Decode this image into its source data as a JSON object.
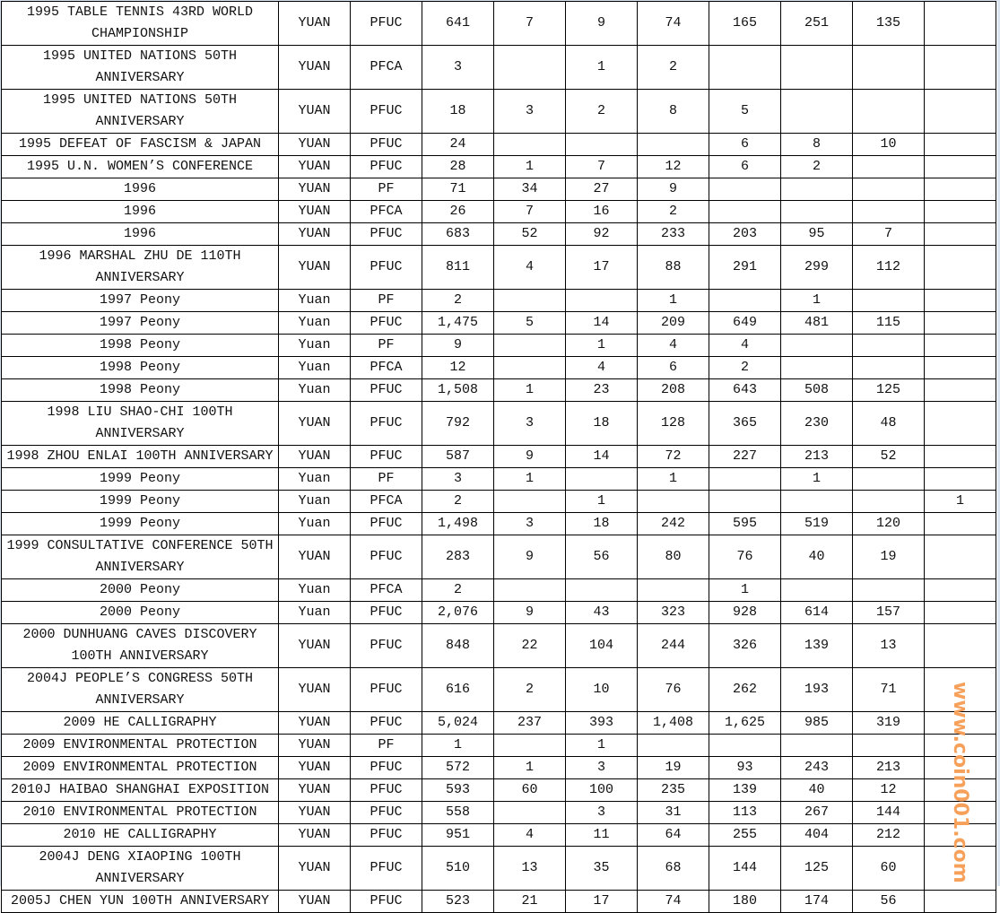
{
  "table": {
    "rows": [
      [
        "1995 TABLE TENNIS 43RD WORLD CHAMPIONSHIP",
        "YUAN",
        "PFUC",
        "641",
        "7",
        "9",
        "74",
        "165",
        "251",
        "135",
        ""
      ],
      [
        "1995 UNITED NATIONS 50TH ANNIVERSARY",
        "YUAN",
        "PFCA",
        "3",
        "",
        "1",
        "2",
        "",
        "",
        "",
        ""
      ],
      [
        "1995 UNITED NATIONS 50TH ANNIVERSARY",
        "YUAN",
        "PFUC",
        "18",
        "3",
        "2",
        "8",
        "5",
        "",
        "",
        ""
      ],
      [
        "1995 DEFEAT OF FASCISM & JAPAN",
        "YUAN",
        "PFUC",
        "24",
        "",
        "",
        "",
        "6",
        "8",
        "10",
        ""
      ],
      [
        "1995 U.N. WOMEN’S CONFERENCE",
        "YUAN",
        "PFUC",
        "28",
        "1",
        "7",
        "12",
        "6",
        "2",
        "",
        ""
      ],
      [
        "1996",
        "YUAN",
        "PF",
        "71",
        "34",
        "27",
        "9",
        "",
        "",
        "",
        ""
      ],
      [
        "1996",
        "YUAN",
        "PFCA",
        "26",
        "7",
        "16",
        "2",
        "",
        "",
        "",
        ""
      ],
      [
        "1996",
        "YUAN",
        "PFUC",
        "683",
        "52",
        "92",
        "233",
        "203",
        "95",
        "7",
        ""
      ],
      [
        "1996 MARSHAL ZHU DE 110TH ANNIVERSARY",
        "YUAN",
        "PFUC",
        "811",
        "4",
        "17",
        "88",
        "291",
        "299",
        "112",
        ""
      ],
      [
        "1997 Peony",
        "Yuan",
        "PF",
        "2",
        "",
        "",
        "1",
        "",
        "1",
        "",
        ""
      ],
      [
        "1997 Peony",
        "Yuan",
        "PFUC",
        "1,475",
        "5",
        "14",
        "209",
        "649",
        "481",
        "115",
        ""
      ],
      [
        "1998 Peony",
        "Yuan",
        "PF",
        "9",
        "",
        "1",
        "4",
        "4",
        "",
        "",
        ""
      ],
      [
        "1998 Peony",
        "Yuan",
        "PFCA",
        "12",
        "",
        "4",
        "6",
        "2",
        "",
        "",
        ""
      ],
      [
        "1998 Peony",
        "Yuan",
        "PFUC",
        "1,508",
        "1",
        "23",
        "208",
        "643",
        "508",
        "125",
        ""
      ],
      [
        "1998 LIU SHAO-CHI 100TH ANNIVERSARY",
        "YUAN",
        "PFUC",
        "792",
        "3",
        "18",
        "128",
        "365",
        "230",
        "48",
        ""
      ],
      [
        "1998 ZHOU ENLAI 100TH ANNIVERSARY",
        "YUAN",
        "PFUC",
        "587",
        "9",
        "14",
        "72",
        "227",
        "213",
        "52",
        ""
      ],
      [
        "1999 Peony",
        "Yuan",
        "PF",
        "3",
        "1",
        "",
        "1",
        "",
        "1",
        "",
        ""
      ],
      [
        "1999 Peony",
        "Yuan",
        "PFCA",
        "2",
        "",
        "1",
        "",
        "",
        "",
        "",
        "1"
      ],
      [
        "1999 Peony",
        "Yuan",
        "PFUC",
        "1,498",
        "3",
        "18",
        "242",
        "595",
        "519",
        "120",
        ""
      ],
      [
        "1999 CONSULTATIVE CONFERENCE 50TH ANNIVERSARY",
        "YUAN",
        "PFUC",
        "283",
        "9",
        "56",
        "80",
        "76",
        "40",
        "19",
        ""
      ],
      [
        "2000 Peony",
        "Yuan",
        "PFCA",
        "2",
        "",
        "",
        "",
        "1",
        "",
        "",
        ""
      ],
      [
        "2000 Peony",
        "Yuan",
        "PFUC",
        "2,076",
        "9",
        "43",
        "323",
        "928",
        "614",
        "157",
        ""
      ],
      [
        "2000 DUNHUANG CAVES DISCOVERY 100TH ANNIVERSARY",
        "YUAN",
        "PFUC",
        "848",
        "22",
        "104",
        "244",
        "326",
        "139",
        "13",
        ""
      ],
      [
        "2004J PEOPLE’S CONGRESS 50TH ANNIVERSARY",
        "YUAN",
        "PFUC",
        "616",
        "2",
        "10",
        "76",
        "262",
        "193",
        "71",
        ""
      ],
      [
        "2009 HE CALLIGRAPHY",
        "YUAN",
        "PFUC",
        "5,024",
        "237",
        "393",
        "1,408",
        "1,625",
        "985",
        "319",
        ""
      ],
      [
        "2009 ENVIRONMENTAL PROTECTION",
        "YUAN",
        "PF",
        "1",
        "",
        "1",
        "",
        "",
        "",
        "",
        ""
      ],
      [
        "2009 ENVIRONMENTAL PROTECTION",
        "YUAN",
        "PFUC",
        "572",
        "1",
        "3",
        "19",
        "93",
        "243",
        "213",
        ""
      ],
      [
        "2010J HAIBAO SHANGHAI EXPOSITION",
        "YUAN",
        "PFUC",
        "593",
        "60",
        "100",
        "235",
        "139",
        "40",
        "12",
        ""
      ],
      [
        "2010 ENVIRONMENTAL PROTECTION",
        "YUAN",
        "PFUC",
        "558",
        "",
        "3",
        "31",
        "113",
        "267",
        "144",
        ""
      ],
      [
        "2010 HE CALLIGRAPHY",
        "YUAN",
        "PFUC",
        "951",
        "4",
        "11",
        "64",
        "255",
        "404",
        "212",
        ""
      ],
      [
        "2004J DENG XIAOPING 100TH ANNIVERSARY",
        "YUAN",
        "PFUC",
        "510",
        "13",
        "35",
        "68",
        "144",
        "125",
        "60",
        ""
      ],
      [
        "2005J CHEN YUN 100TH ANNIVERSARY",
        "YUAN",
        "PFUC",
        "523",
        "21",
        "17",
        "74",
        "180",
        "174",
        "56",
        ""
      ]
    ],
    "two_line_rows": [
      0,
      1,
      2,
      8,
      14,
      19,
      22,
      23,
      30
    ]
  },
  "watermark": "www.coin001.com"
}
